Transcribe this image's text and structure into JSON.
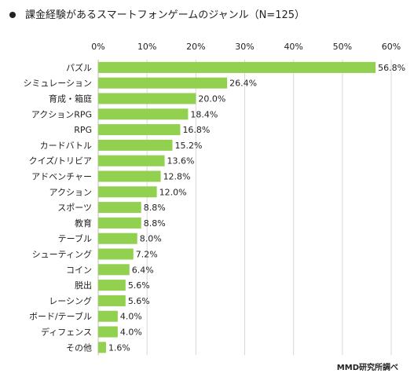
{
  "title": "課金経験があるスマートフォンゲームのジャンル（N=125）",
  "source": "MMD研究所調べ",
  "colors": {
    "bar": "#92d050",
    "grid": "#d9d9d9",
    "axis": "#bfbfbf"
  },
  "chart_data": {
    "type": "bar",
    "orientation": "horizontal",
    "title": "課金経験があるスマートフォンゲームのジャンル（N=125）",
    "categories": [
      "パズル",
      "シミュレーション",
      "育成・箱庭",
      "アクションRPG",
      "RPG",
      "カードバトル",
      "クイズ/トリビア",
      "アドベンチャー",
      "アクション",
      "スポーツ",
      "教育",
      "テーブル",
      "シューティング",
      "コイン",
      "脱出",
      "レーシング",
      "ボード/テーブル",
      "ディフェンス",
      "その他"
    ],
    "values": [
      56.8,
      26.4,
      20.0,
      18.4,
      16.8,
      15.2,
      13.6,
      12.8,
      12.0,
      8.8,
      8.8,
      8.0,
      7.2,
      6.4,
      5.6,
      5.6,
      4.0,
      4.0,
      1.6
    ],
    "value_labels": [
      "56.8%",
      "26.4%",
      "20.0%",
      "18.4%",
      "16.8%",
      "15.2%",
      "13.6%",
      "12.8%",
      "12.0%",
      "8.8%",
      "8.8%",
      "8.0%",
      "7.2%",
      "6.4%",
      "5.6%",
      "5.6%",
      "4.0%",
      "4.0%",
      "1.6%"
    ],
    "xticks": [
      "0%",
      "10%",
      "20%",
      "30%",
      "40%",
      "50%",
      "60%"
    ],
    "xlim": [
      0,
      60
    ],
    "grid": true,
    "legend": "none"
  }
}
